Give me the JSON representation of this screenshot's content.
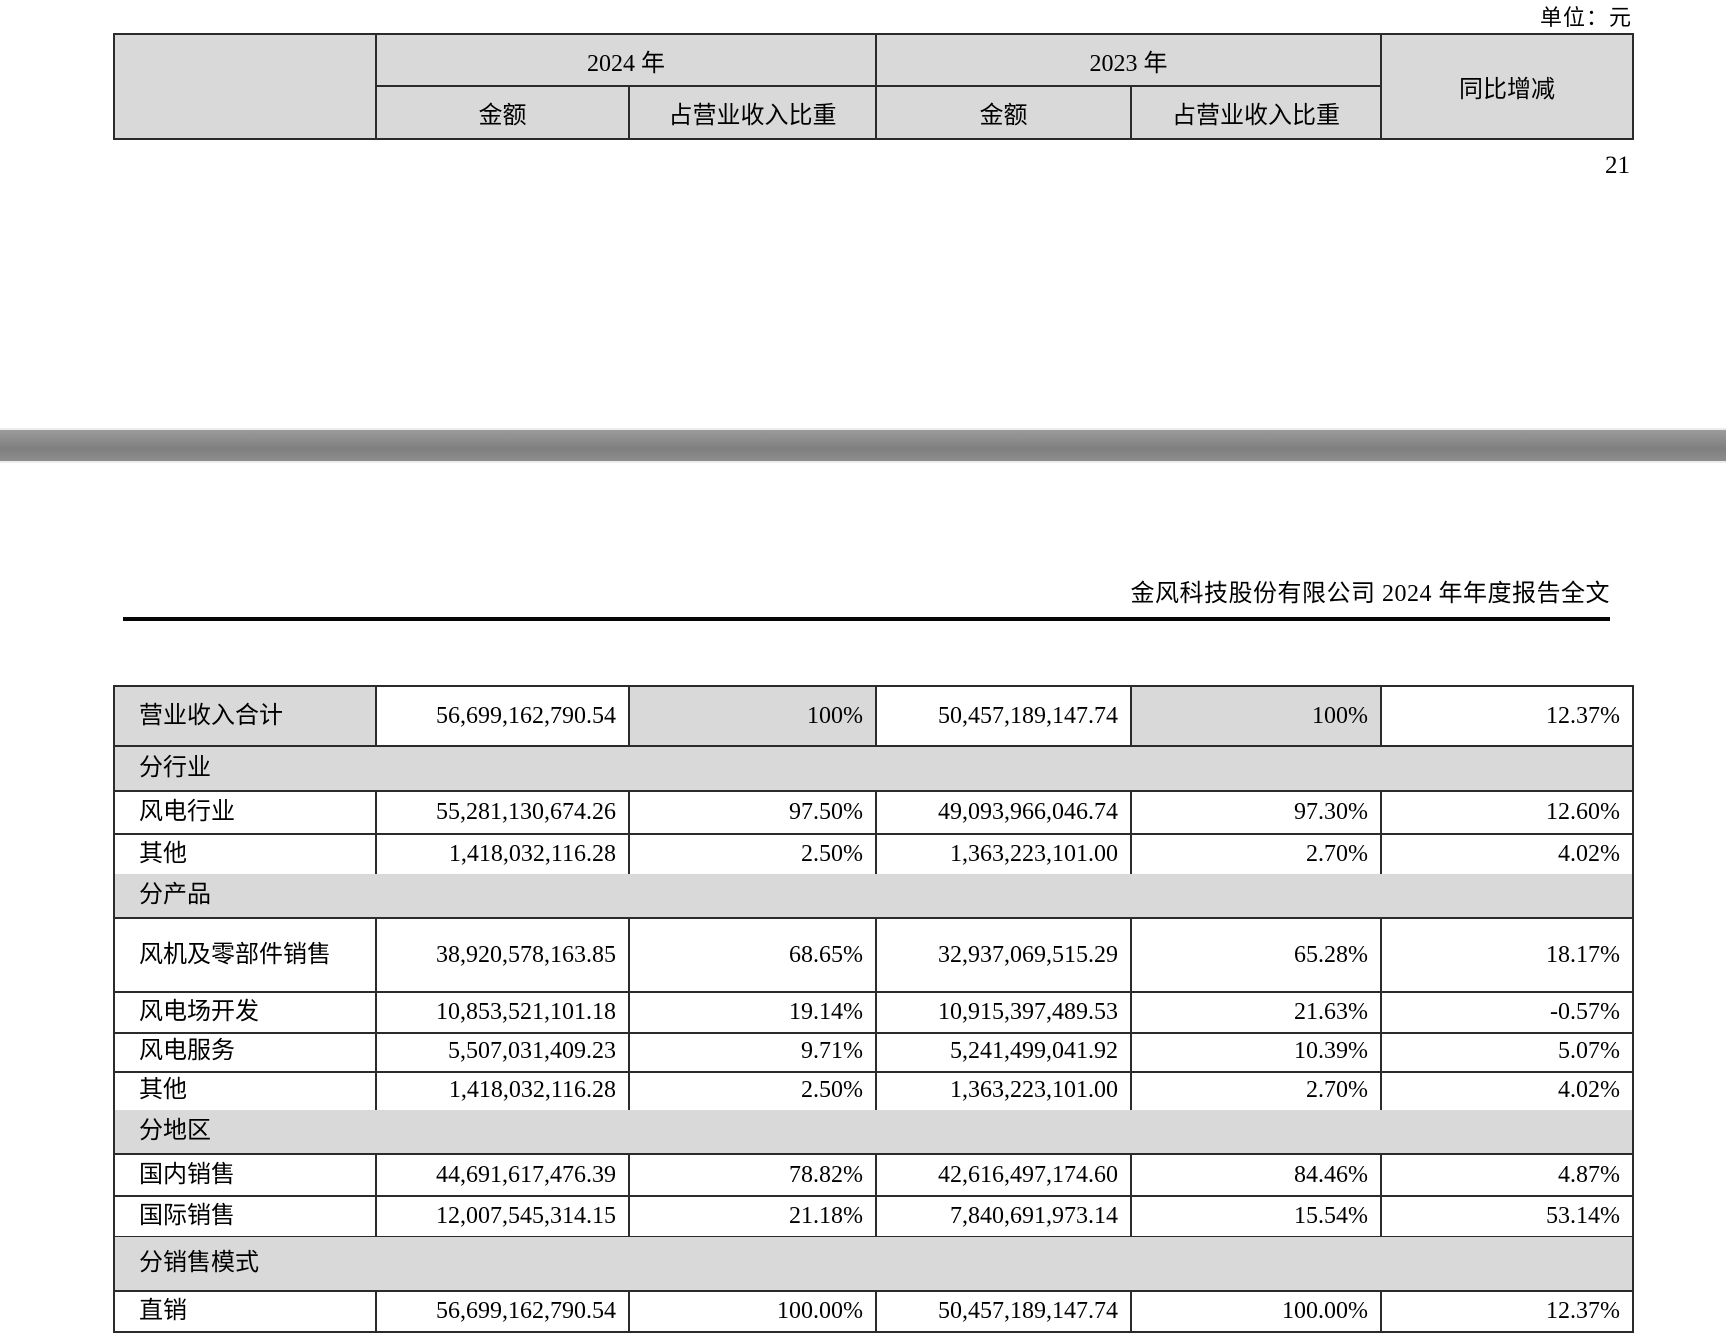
{
  "unit_note": "单位：元",
  "page_number": "21",
  "doc_header": "金风科技股份有限公司 2024 年年度报告全文",
  "summary_table_header": {
    "col_year_2024": "2024 年",
    "col_year_2023": "2023 年",
    "col_amount_2024": "金额",
    "col_ratio_2024": "占营业收入比重",
    "col_amount_2023": "金额",
    "col_ratio_2023": "占营业收入比重",
    "col_yoy": "同比增减"
  },
  "revenue_table": {
    "rows": [
      {
        "type": "data",
        "label": "营业收入合计",
        "a2024": "56,699,162,790.54",
        "p2024": "100%",
        "a2023": "50,457,189,147.74",
        "p2023": "100%",
        "yoy": "12.37%"
      },
      {
        "type": "section",
        "label": "分行业"
      },
      {
        "type": "data",
        "label": "风电行业",
        "a2024": "55,281,130,674.26",
        "p2024": "97.50%",
        "a2023": "49,093,966,046.74",
        "p2023": "97.30%",
        "yoy": "12.60%"
      },
      {
        "type": "data",
        "label": "其他",
        "a2024": "1,418,032,116.28",
        "p2024": "2.50%",
        "a2023": "1,363,223,101.00",
        "p2023": "2.70%",
        "yoy": "4.02%"
      },
      {
        "type": "section",
        "label": "分产品"
      },
      {
        "type": "data",
        "label": "风机及零部件销售",
        "a2024": "38,920,578,163.85",
        "p2024": "68.65%",
        "a2023": "32,937,069,515.29",
        "p2023": "65.28%",
        "yoy": "18.17%"
      },
      {
        "type": "data",
        "label": "风电场开发",
        "a2024": "10,853,521,101.18",
        "p2024": "19.14%",
        "a2023": "10,915,397,489.53",
        "p2023": "21.63%",
        "yoy": "-0.57%"
      },
      {
        "type": "data",
        "label": "风电服务",
        "a2024": "5,507,031,409.23",
        "p2024": "9.71%",
        "a2023": "5,241,499,041.92",
        "p2023": "10.39%",
        "yoy": "5.07%"
      },
      {
        "type": "data",
        "label": "其他",
        "a2024": "1,418,032,116.28",
        "p2024": "2.50%",
        "a2023": "1,363,223,101.00",
        "p2023": "2.70%",
        "yoy": "4.02%"
      },
      {
        "type": "section",
        "label": "分地区"
      },
      {
        "type": "data",
        "label": "国内销售",
        "a2024": "44,691,617,476.39",
        "p2024": "78.82%",
        "a2023": "42,616,497,174.60",
        "p2023": "84.46%",
        "yoy": "4.87%"
      },
      {
        "type": "data",
        "label": "国际销售",
        "a2024": "12,007,545,314.15",
        "p2024": "21.18%",
        "a2023": "7,840,691,973.14",
        "p2023": "15.54%",
        "yoy": "53.14%"
      },
      {
        "type": "section",
        "label": "分销售模式"
      },
      {
        "type": "data",
        "label": "直销",
        "a2024": "56,699,162,790.54",
        "p2024": "100.00%",
        "a2023": "50,457,189,147.74",
        "p2023": "100.00%",
        "yoy": "12.37%"
      }
    ]
  },
  "colors": {
    "cell_shade": "#d9d9d9",
    "table_border": "#2b2b2b",
    "separator_gray": "#868686",
    "rule_black": "#050505"
  }
}
